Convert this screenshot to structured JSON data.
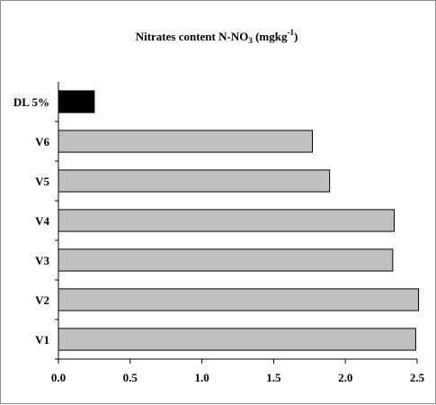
{
  "chart_data": {
    "type": "bar",
    "orientation": "horizontal",
    "title_parts": {
      "main": "Nitrates content N-NO",
      "sub": "3",
      "unit_open": " (mgkg",
      "sup": "-1",
      "unit_close": ")"
    },
    "categories": [
      "V1",
      "V2",
      "V3",
      "V4",
      "V5",
      "V6",
      "DL 5%"
    ],
    "values": [
      2.49,
      2.51,
      2.33,
      2.34,
      1.89,
      1.77,
      0.25
    ],
    "bar_colors": [
      "#c0c0c0",
      "#c0c0c0",
      "#c0c0c0",
      "#c0c0c0",
      "#c0c0c0",
      "#c0c0c0",
      "#000000"
    ],
    "xlim": [
      0,
      2.5
    ],
    "xticks": [
      "0.0",
      "0.5",
      "1.0",
      "1.5",
      "2.0",
      "2.5"
    ],
    "xlabel": "",
    "ylabel": "",
    "grid": false,
    "legend": "none"
  }
}
